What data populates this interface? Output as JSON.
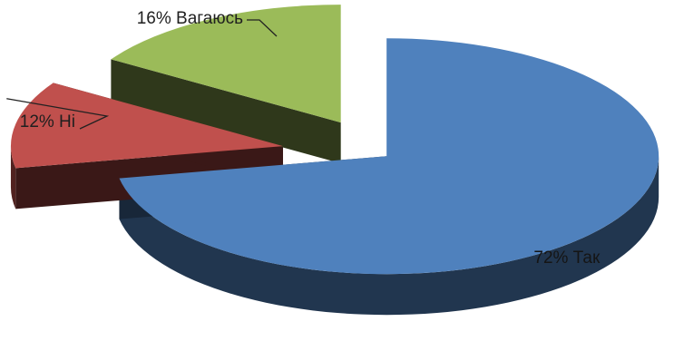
{
  "chart_data": {
    "type": "pie",
    "title": "",
    "style": "3d-exploded",
    "slices": [
      {
        "label": "Так",
        "value": 72,
        "display": "72% Так",
        "color": "#4F81BD"
      },
      {
        "label": "Ні",
        "value": 12,
        "display": "12% Ні",
        "color": "#C0504D"
      },
      {
        "label": "Вагаюсь",
        "value": 16,
        "display": "16% Вагаюсь",
        "color": "#9BBB59"
      }
    ],
    "legend": "none",
    "data_labels": "outside-with-leader-lines for small slices, inside for large slice"
  }
}
